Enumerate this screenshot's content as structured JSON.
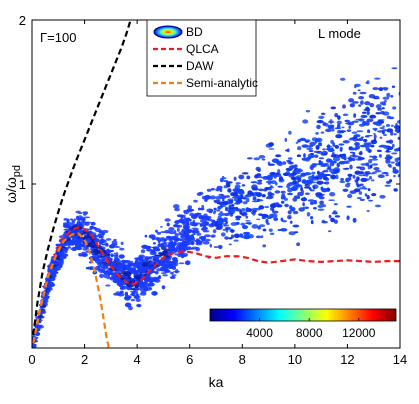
{
  "chart_data": {
    "type": "scatter",
    "xlabel": "ka",
    "ylabel": "ω/ω",
    "ylabel_sub": "pd",
    "xlim": [
      0,
      14
    ],
    "ylim": [
      0,
      2
    ],
    "x_ticks": [
      "0",
      "2",
      "4",
      "6",
      "8",
      "10",
      "12",
      "14"
    ],
    "y_ticks": [
      "1",
      "2"
    ],
    "annotations": {
      "gamma": "Γ=100",
      "mode": "L mode"
    },
    "legend": {
      "placement": "top-center",
      "entries": [
        {
          "name": "BD",
          "style": "density-ellipse"
        },
        {
          "name": "QLCA",
          "style": "dashed",
          "color": "#ee1c1c"
        },
        {
          "name": "DAW",
          "style": "dashed",
          "color": "#000000"
        },
        {
          "name": "Semi-analytic",
          "style": "dashed",
          "color": "#f07f10"
        }
      ]
    },
    "colorbar": {
      "placement": "bottom-right",
      "tick_labels": [
        "4000",
        "8000",
        "12000"
      ],
      "tick_values": [
        4000,
        8000,
        12000
      ],
      "range": [
        0,
        15000
      ]
    },
    "series": [
      {
        "name": "QLCA",
        "color": "#ee1c1c",
        "style": "dashed",
        "x": [
          0.05,
          0.3,
          0.6,
          0.9,
          1.2,
          1.5,
          1.75,
          2.0,
          2.3,
          2.6,
          3.0,
          3.3,
          3.6,
          3.9,
          4.2,
          4.6,
          5.0,
          5.4,
          5.8,
          6.2,
          6.6,
          7.0,
          7.4,
          7.8,
          8.2,
          8.6,
          9.0,
          9.5,
          10.0,
          10.5,
          11.0,
          11.5,
          12.0,
          12.5,
          13.0,
          13.5,
          14.0
        ],
        "y": [
          0.03,
          0.23,
          0.44,
          0.58,
          0.67,
          0.72,
          0.735,
          0.725,
          0.68,
          0.6,
          0.5,
          0.44,
          0.4,
          0.39,
          0.42,
          0.49,
          0.55,
          0.58,
          0.59,
          0.58,
          0.56,
          0.55,
          0.56,
          0.56,
          0.55,
          0.53,
          0.52,
          0.53,
          0.54,
          0.53,
          0.525,
          0.53,
          0.535,
          0.53,
          0.525,
          0.53,
          0.53
        ]
      },
      {
        "name": "DAW",
        "color": "#000000",
        "style": "dashed",
        "x": [
          0.05,
          0.2,
          0.4,
          0.6,
          0.8,
          1.0,
          1.2,
          1.4,
          1.6,
          1.8,
          2.0,
          2.2,
          2.4,
          2.6,
          2.8,
          3.0,
          3.2,
          3.4,
          3.6,
          3.75
        ],
        "y": [
          0.08,
          0.27,
          0.46,
          0.6,
          0.72,
          0.83,
          0.93,
          1.02,
          1.11,
          1.19,
          1.27,
          1.35,
          1.43,
          1.51,
          1.59,
          1.67,
          1.75,
          1.83,
          1.92,
          2.0
        ]
      },
      {
        "name": "Semi-analytic",
        "color": "#f07f10",
        "style": "dashed",
        "x": [
          0.05,
          0.3,
          0.6,
          0.9,
          1.2,
          1.5,
          1.75,
          2.0,
          2.2,
          2.4,
          2.6,
          2.7,
          2.8,
          2.85,
          2.9,
          2.92
        ],
        "y": [
          0.03,
          0.23,
          0.43,
          0.56,
          0.65,
          0.69,
          0.7,
          0.66,
          0.58,
          0.46,
          0.3,
          0.2,
          0.1,
          0.05,
          0.02,
          0.0
        ]
      }
    ]
  }
}
